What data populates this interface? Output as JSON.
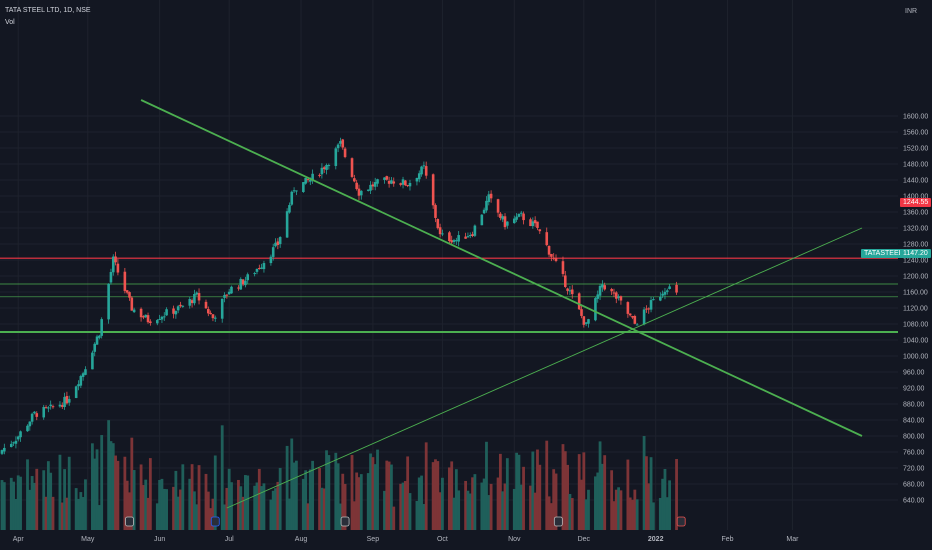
{
  "header": {
    "symbol_line": "TATA STEEL LTD, 1D, NSE",
    "indicator": "Vol"
  },
  "price_axis": {
    "currency": "INR",
    "ticks": [
      "1600.00",
      "1560.00",
      "1520.00",
      "1480.00",
      "1440.00",
      "1400.00",
      "1360.00",
      "1320.00",
      "1280.00",
      "1240.00",
      "1200.00",
      "1160.00",
      "1120.00",
      "1080.00",
      "1040.00",
      "1000.00",
      "960.00",
      "920.00",
      "880.00",
      "840.00",
      "800.00",
      "760.00",
      "720.00",
      "680.00",
      "640.00"
    ]
  },
  "time_axis": {
    "labels": [
      "Apr",
      "May",
      "Jun",
      "Jul",
      "Aug",
      "Sep",
      "Oct",
      "Nov",
      "Dec",
      "2022",
      "Feb",
      "Mar"
    ]
  },
  "badges": {
    "resistance_price": "1244.55",
    "symbol": "TATASTEEL",
    "last_price": "1147.20"
  },
  "colors": {
    "background": "#131722",
    "up": "#26a69a",
    "down": "#ef5350",
    "trendline": "#4caf50",
    "resistance": "#f23645",
    "grid": "#1e222d",
    "axis_text": "#b2b5be"
  },
  "chart_data": {
    "type": "candlestick",
    "symbol": "TATA STEEL LTD",
    "interval": "1D",
    "exchange": "NSE",
    "y_range": [
      620,
      1620
    ],
    "horizontal_levels": [
      {
        "price": 1244.55,
        "style": "red"
      },
      {
        "price": 1180,
        "style": "thin-green"
      },
      {
        "price": 1148,
        "style": "thin-green"
      },
      {
        "price": 1060,
        "style": "thick-green"
      }
    ],
    "trendlines": [
      {
        "from": {
          "date": "2021-05-24",
          "price": 1640
        },
        "to": {
          "date": "2022-03-31",
          "price": 800
        }
      },
      {
        "from": {
          "date": "2021-06-30",
          "price": 620
        },
        "to": {
          "date": "2022-03-31",
          "price": 1320
        }
      }
    ],
    "series": [
      {
        "date": "Mar 25",
        "close": 765
      },
      {
        "date": "Apr 1",
        "close": 800
      },
      {
        "date": "Apr 8",
        "close": 855
      },
      {
        "date": "Apr 15",
        "close": 868
      },
      {
        "date": "Apr 22",
        "close": 890
      },
      {
        "date": "Apr 29",
        "close": 960
      },
      {
        "date": "May 6",
        "close": 1060
      },
      {
        "date": "May 12",
        "close": 1240
      },
      {
        "date": "May 20",
        "close": 1120
      },
      {
        "date": "May 27",
        "close": 1090
      },
      {
        "date": "Jun 3",
        "close": 1105
      },
      {
        "date": "Jun 10",
        "close": 1120
      },
      {
        "date": "Jun 17",
        "close": 1150
      },
      {
        "date": "Jun 24",
        "close": 1095
      },
      {
        "date": "Jul 1",
        "close": 1165
      },
      {
        "date": "Jul 8",
        "close": 1190
      },
      {
        "date": "Jul 15",
        "close": 1230
      },
      {
        "date": "Jul 22",
        "close": 1280
      },
      {
        "date": "Jul 29",
        "close": 1420
      },
      {
        "date": "Aug 5",
        "close": 1440
      },
      {
        "date": "Aug 12",
        "close": 1480
      },
      {
        "date": "Aug 18",
        "close": 1530
      },
      {
        "date": "Aug 26",
        "close": 1410
      },
      {
        "date": "Sep 2",
        "close": 1430
      },
      {
        "date": "Sep 9",
        "close": 1440
      },
      {
        "date": "Sep 16",
        "close": 1430
      },
      {
        "date": "Sep 23",
        "close": 1470
      },
      {
        "date": "Sep 30",
        "close": 1300
      },
      {
        "date": "Oct 7",
        "close": 1290
      },
      {
        "date": "Oct 14",
        "close": 1310
      },
      {
        "date": "Oct 21",
        "close": 1395
      },
      {
        "date": "Oct 28",
        "close": 1330
      },
      {
        "date": "Nov 4",
        "close": 1350
      },
      {
        "date": "Nov 11",
        "close": 1320
      },
      {
        "date": "Nov 18",
        "close": 1240
      },
      {
        "date": "Nov 25",
        "close": 1160
      },
      {
        "date": "Dec 2",
        "close": 1075
      },
      {
        "date": "Dec 9",
        "close": 1180
      },
      {
        "date": "Dec 16",
        "close": 1140
      },
      {
        "date": "Dec 23",
        "close": 1080
      },
      {
        "date": "Dec 30",
        "close": 1130
      },
      {
        "date": "Jan 6",
        "close": 1175
      },
      {
        "date": "Jan 11",
        "close": 1147
      }
    ]
  }
}
